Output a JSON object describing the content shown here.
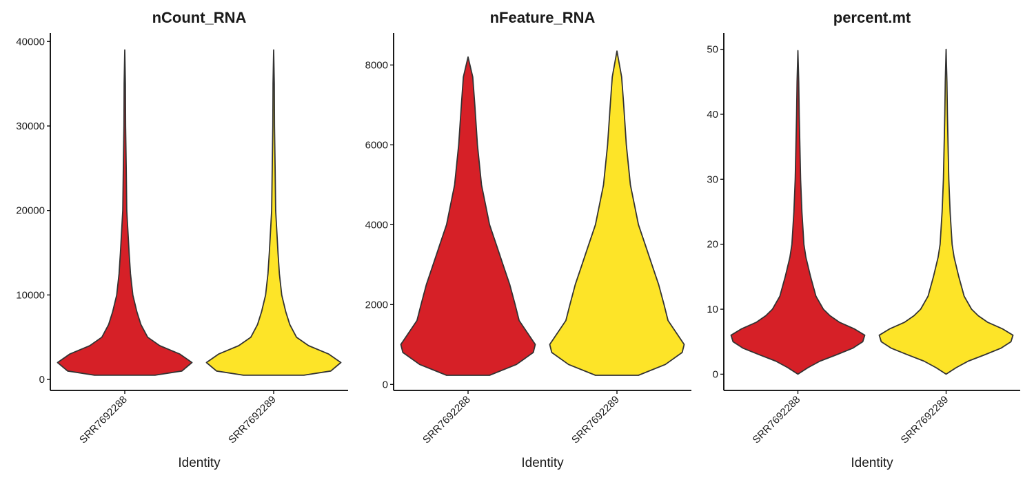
{
  "chart_data": [
    {
      "type": "violin",
      "title": "nCount_RNA",
      "xlabel": "Identity",
      "ylabel": "",
      "categories": [
        "SRR7692288",
        "SRR7692289"
      ],
      "colors": [
        "#D62027",
        "#FDE428"
      ],
      "ylim": [
        -1300,
        41000
      ],
      "yticks": [
        0,
        10000,
        20000,
        30000,
        40000
      ],
      "series": [
        {
          "category": "SRR7692288",
          "min": 500,
          "max": 39000,
          "density_profile": [
            [
              500,
              0.45
            ],
            [
              1000,
              0.85
            ],
            [
              2000,
              1.0
            ],
            [
              3000,
              0.82
            ],
            [
              4000,
              0.52
            ],
            [
              5000,
              0.34
            ],
            [
              6500,
              0.24
            ],
            [
              8000,
              0.18
            ],
            [
              10000,
              0.12
            ],
            [
              12500,
              0.085
            ],
            [
              15000,
              0.065
            ],
            [
              20000,
              0.03
            ],
            [
              25000,
              0.022
            ],
            [
              30000,
              0.012
            ],
            [
              35000,
              0.009
            ],
            [
              39000,
              0.0
            ]
          ]
        },
        {
          "category": "SRR7692289",
          "min": 500,
          "max": 39000,
          "density_profile": [
            [
              500,
              0.45
            ],
            [
              1000,
              0.85
            ],
            [
              2000,
              1.0
            ],
            [
              3000,
              0.82
            ],
            [
              4000,
              0.52
            ],
            [
              5000,
              0.34
            ],
            [
              6500,
              0.24
            ],
            [
              8000,
              0.18
            ],
            [
              10000,
              0.12
            ],
            [
              12500,
              0.085
            ],
            [
              15000,
              0.065
            ],
            [
              20000,
              0.03
            ],
            [
              25000,
              0.022
            ],
            [
              30000,
              0.012
            ],
            [
              35000,
              0.009
            ],
            [
              39000,
              0.0
            ]
          ]
        }
      ]
    },
    {
      "type": "violin",
      "title": "nFeature_RNA",
      "xlabel": "Identity",
      "ylabel": "",
      "categories": [
        "SRR7692288",
        "SRR7692289"
      ],
      "colors": [
        "#D62027",
        "#FDE428"
      ],
      "ylim": [
        -150,
        8800
      ],
      "yticks": [
        0,
        2000,
        4000,
        6000,
        8000
      ],
      "series": [
        {
          "category": "SRR7692288",
          "min": 230,
          "max": 8200,
          "density_profile": [
            [
              230,
              0.32
            ],
            [
              500,
              0.72
            ],
            [
              800,
              0.97
            ],
            [
              1000,
              1.0
            ],
            [
              1300,
              0.88
            ],
            [
              1600,
              0.76
            ],
            [
              2000,
              0.7
            ],
            [
              2500,
              0.62
            ],
            [
              3000,
              0.52
            ],
            [
              3500,
              0.42
            ],
            [
              4000,
              0.32
            ],
            [
              5000,
              0.2
            ],
            [
              6000,
              0.14
            ],
            [
              7000,
              0.1
            ],
            [
              7700,
              0.07
            ],
            [
              8200,
              0.0
            ]
          ]
        },
        {
          "category": "SRR7692289",
          "min": 230,
          "max": 8350,
          "density_profile": [
            [
              230,
              0.32
            ],
            [
              500,
              0.72
            ],
            [
              800,
              0.97
            ],
            [
              1000,
              1.0
            ],
            [
              1300,
              0.88
            ],
            [
              1600,
              0.76
            ],
            [
              2000,
              0.7
            ],
            [
              2500,
              0.62
            ],
            [
              3000,
              0.52
            ],
            [
              3500,
              0.42
            ],
            [
              4000,
              0.32
            ],
            [
              5000,
              0.2
            ],
            [
              6000,
              0.14
            ],
            [
              7000,
              0.1
            ],
            [
              7700,
              0.07
            ],
            [
              8350,
              0.0
            ]
          ]
        }
      ]
    },
    {
      "type": "violin",
      "title": "percent.mt",
      "xlabel": "Identity",
      "ylabel": "",
      "categories": [
        "SRR7692288",
        "SRR7692289"
      ],
      "colors": [
        "#D62027",
        "#FDE428"
      ],
      "ylim": [
        -2.5,
        52.5
      ],
      "yticks": [
        0,
        10,
        20,
        30,
        40,
        50
      ],
      "series": [
        {
          "category": "SRR7692288",
          "min": 0,
          "max": 49.8,
          "density_profile": [
            [
              0,
              0.0
            ],
            [
              1,
              0.15
            ],
            [
              2,
              0.33
            ],
            [
              3,
              0.58
            ],
            [
              4,
              0.82
            ],
            [
              5,
              0.97
            ],
            [
              6,
              1.0
            ],
            [
              7,
              0.84
            ],
            [
              8,
              0.62
            ],
            [
              9,
              0.48
            ],
            [
              10,
              0.38
            ],
            [
              12,
              0.27
            ],
            [
              15,
              0.19
            ],
            [
              18,
              0.12
            ],
            [
              20,
              0.09
            ],
            [
              25,
              0.06
            ],
            [
              30,
              0.04
            ],
            [
              35,
              0.03
            ],
            [
              40,
              0.02
            ],
            [
              45,
              0.012
            ],
            [
              49.8,
              0.0
            ]
          ]
        },
        {
          "category": "SRR7692289",
          "min": 0,
          "max": 50,
          "density_profile": [
            [
              0,
              0.0
            ],
            [
              1,
              0.15
            ],
            [
              2,
              0.33
            ],
            [
              3,
              0.58
            ],
            [
              4,
              0.82
            ],
            [
              5,
              0.97
            ],
            [
              6,
              1.0
            ],
            [
              7,
              0.84
            ],
            [
              8,
              0.62
            ],
            [
              9,
              0.48
            ],
            [
              10,
              0.38
            ],
            [
              12,
              0.27
            ],
            [
              15,
              0.19
            ],
            [
              18,
              0.12
            ],
            [
              20,
              0.09
            ],
            [
              25,
              0.06
            ],
            [
              30,
              0.04
            ],
            [
              35,
              0.03
            ],
            [
              40,
              0.02
            ],
            [
              45,
              0.012
            ],
            [
              50,
              0.0
            ]
          ]
        }
      ]
    }
  ]
}
